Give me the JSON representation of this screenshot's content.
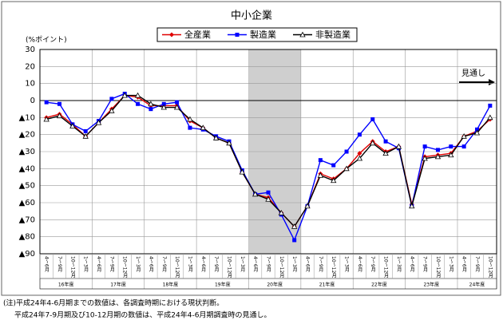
{
  "chart_data": {
    "type": "line",
    "title": "中小企業",
    "y_label": "(%ポイント)",
    "categories": [
      "4～6月",
      "7～9月",
      "10～12月",
      "1～3月",
      "4～6月",
      "7～9月",
      "10～12月",
      "1～3月",
      "4～6月",
      "7～9月",
      "10～12月",
      "1～3月",
      "4～6月",
      "7～9月",
      "10～12月",
      "1～3月",
      "4～6月",
      "7～9月",
      "10～12月",
      "1～3月",
      "4～6月",
      "7～9月",
      "10～12月",
      "1～3月",
      "4～6月",
      "7～9月",
      "10～12月",
      "1～3月",
      "4～6月",
      "7～9月",
      "10～12月",
      "1～3月",
      "4～6月",
      "7～9月",
      "10～12月"
    ],
    "fiscal_years": [
      {
        "label": "16年度",
        "quarters": 4,
        "shaded": false
      },
      {
        "label": "17年度",
        "quarters": 4,
        "shaded": false
      },
      {
        "label": "18年度",
        "quarters": 4,
        "shaded": false
      },
      {
        "label": "19年度",
        "quarters": 4,
        "shaded": false
      },
      {
        "label": "20年度",
        "quarters": 4,
        "shaded": true
      },
      {
        "label": "21年度",
        "quarters": 4,
        "shaded": false
      },
      {
        "label": "22年度",
        "quarters": 4,
        "shaded": false
      },
      {
        "label": "23年度",
        "quarters": 4,
        "shaded": false
      },
      {
        "label": "24年度",
        "quarters": 3,
        "shaded": false
      }
    ],
    "series": [
      {
        "name": "全産業",
        "color": "#e00000",
        "marker": "diamond",
        "values": [
          -10,
          -8,
          -14,
          -21,
          -13,
          -5,
          3,
          2,
          -3,
          -3,
          -3,
          -12,
          -16,
          -22,
          -25,
          -42,
          -55,
          -57,
          -66,
          -74,
          -62,
          -43,
          -46,
          -40,
          -31,
          -24,
          -30,
          -27,
          -61,
          -33,
          -32,
          -31,
          -21,
          -18,
          -11
        ]
      },
      {
        "name": "製造業",
        "color": "#0000ff",
        "marker": "square",
        "values": [
          -1,
          -2,
          -14,
          -18,
          -12,
          1,
          4,
          -2,
          -5,
          -2,
          -1,
          -16,
          -17,
          -21,
          -24,
          -41,
          -55,
          -54,
          -67,
          -82,
          -62,
          -35,
          -38,
          -30,
          -20,
          -11,
          -24,
          -28,
          -62,
          -27,
          -29,
          -27,
          -27,
          -17,
          -3
        ]
      },
      {
        "name": "非製造業",
        "color": "#000000",
        "marker": "triangle",
        "values": [
          -11,
          -9,
          -15,
          -21,
          -13,
          -6,
          3,
          3,
          -2,
          -4,
          -4,
          -11,
          -16,
          -22,
          -25,
          -42,
          -55,
          -58,
          -66,
          -74,
          -62,
          -44,
          -47,
          -40,
          -34,
          -25,
          -31,
          -27,
          -62,
          -34,
          -33,
          -32,
          -21,
          -19,
          -10
        ]
      }
    ],
    "ylim": [
      -90,
      30
    ],
    "yticks": [
      30,
      20,
      10,
      0,
      {
        "value": -10,
        "label": "▲10"
      },
      {
        "value": -20,
        "label": "▲20"
      },
      {
        "value": -30,
        "label": "▲30"
      },
      {
        "value": -40,
        "label": "▲40"
      },
      {
        "value": -50,
        "label": "▲50"
      },
      {
        "value": -60,
        "label": "▲60"
      },
      {
        "value": -70,
        "label": "▲70"
      },
      {
        "value": -80,
        "label": "▲80"
      },
      {
        "value": -90,
        "label": "▲90"
      }
    ],
    "grid": true,
    "annotation": "見通し",
    "notes": [
      "(注)平成24年4-6月期までの数値は、各調査時期における現状判断。",
      "平成24年7-9月期及び10-12月期の数値は、平成24年4-6月期調査時の見通し。"
    ]
  }
}
